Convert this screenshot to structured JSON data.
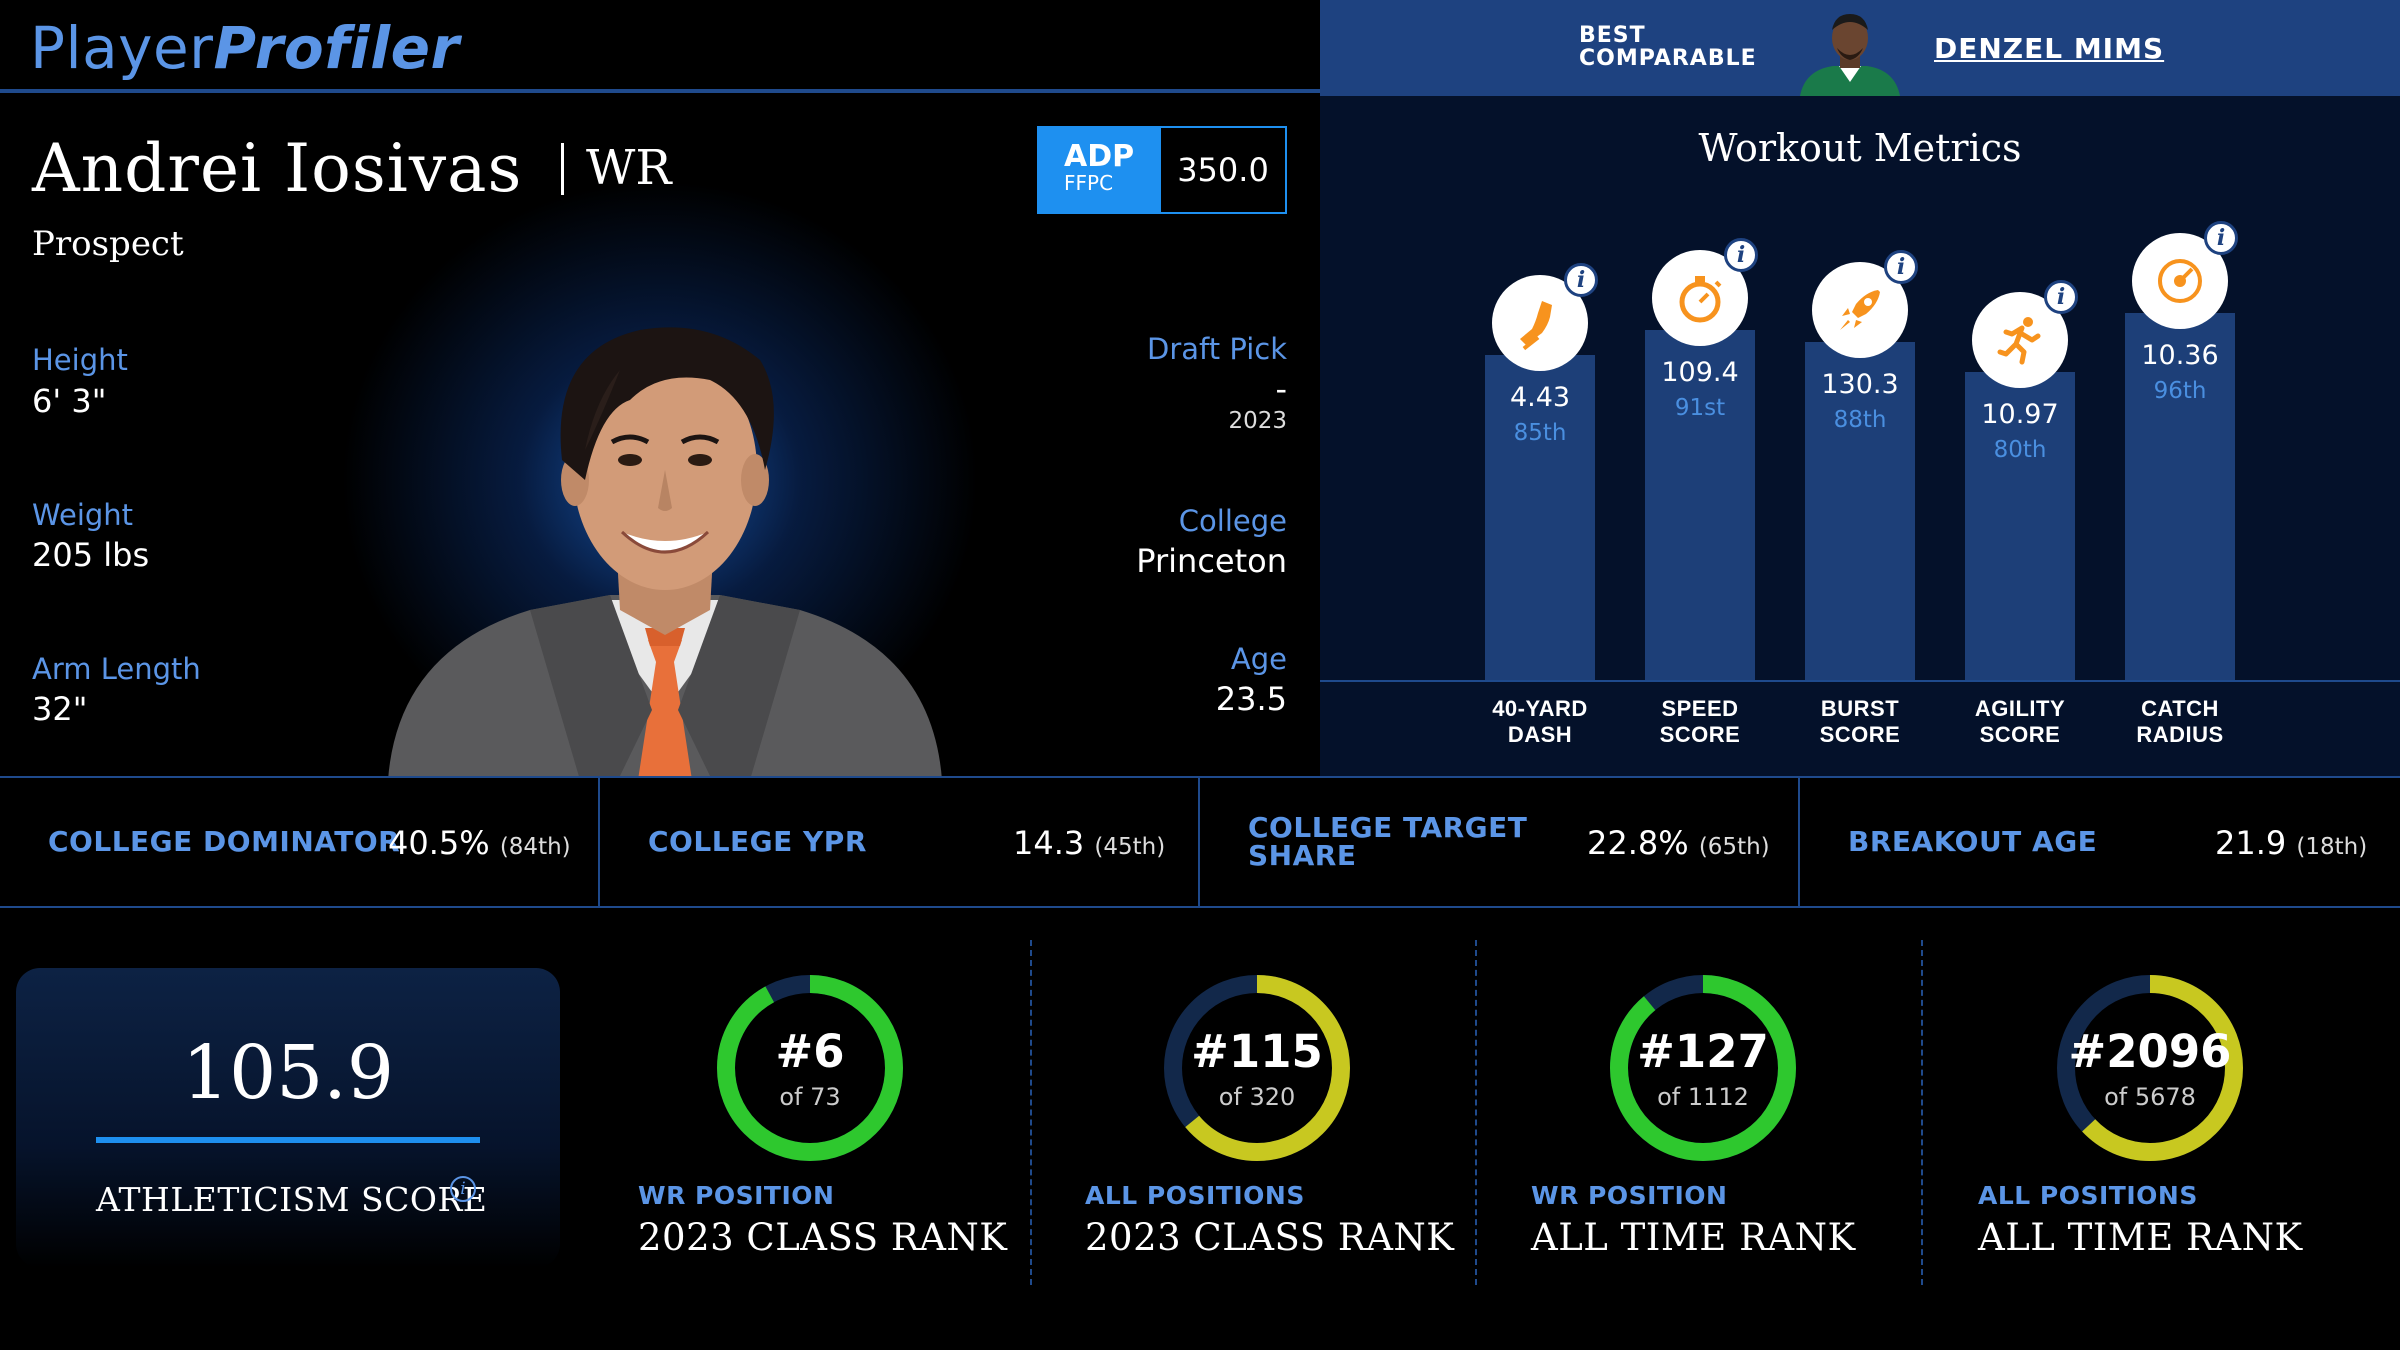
{
  "header": {
    "logo_part1": "Player",
    "logo_part2": "Profiler",
    "comparable_label_1": "BEST",
    "comparable_label_2": "COMPARABLE",
    "comparable_name": "DENZEL MIMS"
  },
  "player": {
    "name": "Andrei Iosivas",
    "position": "WR",
    "status": "Prospect",
    "adp_label": "ADP",
    "adp_sub": "FFPC",
    "adp_value": "350.0",
    "height_label": "Height",
    "height": "6' 3\"",
    "weight_label": "Weight",
    "weight": "205 lbs",
    "arm_label": "Arm Length",
    "arm": "32\"",
    "draft_label": "Draft Pick",
    "draft_pick": "-",
    "draft_year": "2023",
    "college_label": "College",
    "college": "Princeton",
    "age_label": "Age",
    "age": "23.5"
  },
  "workout": {
    "title": "Workout Metrics",
    "metrics": [
      {
        "value": "4.43",
        "pct": "85th",
        "label1": "40-YARD",
        "label2": "DASH",
        "icon": "shoe-icon"
      },
      {
        "value": "109.4",
        "pct": "91st",
        "label1": "SPEED",
        "label2": "SCORE",
        "icon": "stopwatch-icon"
      },
      {
        "value": "130.3",
        "pct": "88th",
        "label1": "BURST",
        "label2": "SCORE",
        "icon": "rocket-icon"
      },
      {
        "value": "10.97",
        "pct": "80th",
        "label1": "AGILITY",
        "label2": "SCORE",
        "icon": "runner-icon"
      },
      {
        "value": "10.36",
        "pct": "96th",
        "label1": "CATCH",
        "label2": "RADIUS",
        "icon": "target-icon"
      }
    ]
  },
  "college_stats": [
    {
      "label1": "COLLEGE DOMINATOR",
      "label2": "",
      "value": "40.5%",
      "rank": "(84th)"
    },
    {
      "label1": "COLLEGE YPR",
      "label2": "",
      "value": "14.3",
      "rank": "(45th)"
    },
    {
      "label1": "COLLEGE TARGET",
      "label2": "SHARE",
      "value": "22.8%",
      "rank": "(65th)"
    },
    {
      "label1": "BREAKOUT AGE",
      "label2": "",
      "value": "21.9",
      "rank": "(18th)"
    }
  ],
  "athleticism": {
    "score": "105.9",
    "label": "ATHLETICISM SCORE"
  },
  "ranks": [
    {
      "rank": "#6",
      "of": "of 73",
      "sub": "WR POSITION",
      "main": "2023 CLASS RANK",
      "fraction": 0.92,
      "color": "#2ec82e"
    },
    {
      "rank": "#115",
      "of": "of 320",
      "sub": "ALL POSITIONS",
      "main": "2023 CLASS RANK",
      "fraction": 0.64,
      "color": "#c8c820"
    },
    {
      "rank": "#127",
      "of": "of 1112",
      "sub": "WR POSITION",
      "main": "ALL TIME RANK",
      "fraction": 0.89,
      "color": "#2ec82e"
    },
    {
      "rank": "#2096",
      "of": "of 5678",
      "sub": "ALL POSITIONS",
      "main": "ALL TIME RANK",
      "fraction": 0.63,
      "color": "#c8c820"
    }
  ],
  "colors": {
    "accent": "#5b95e6",
    "adp_blue": "#1e90f0",
    "bar": "#1d3f78",
    "icon_orange": "#f7931e",
    "ring_track": "#12284a"
  }
}
